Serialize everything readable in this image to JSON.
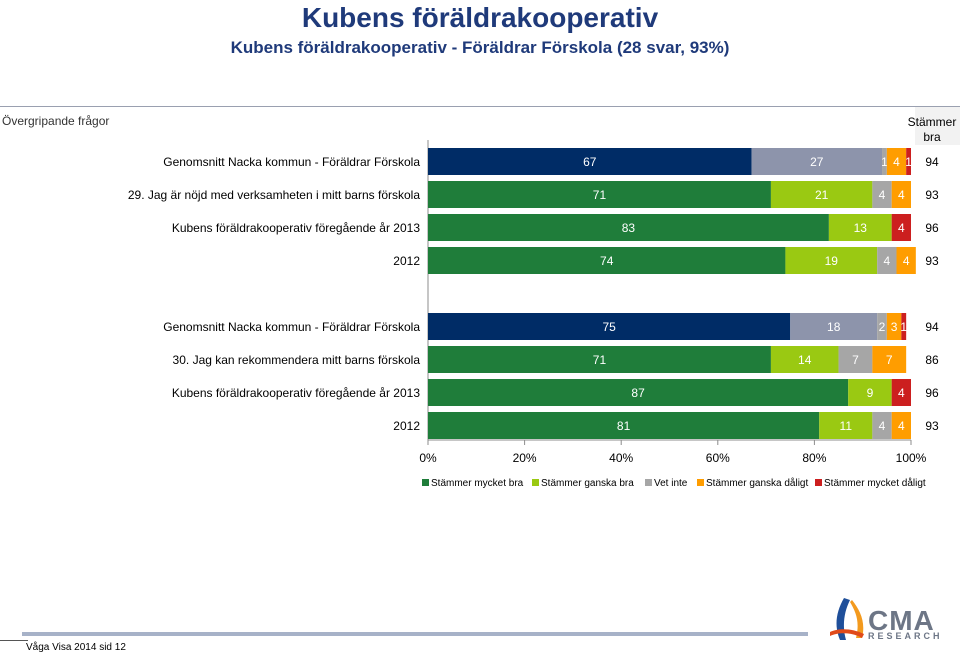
{
  "header": {
    "title": "Kubens föräldrakooperativ",
    "subtitle": "Kubens föräldrakooperativ - Föräldrar Förskola (28 svar, 93%)",
    "section": "Övergripande frågor",
    "right_column_line1": "Stämmer",
    "right_column_line2": "bra"
  },
  "footer": {
    "page_label": "Våga Visa 2014 sid 12",
    "logo_main": "CMA",
    "logo_sub": "RESEARCH"
  },
  "colors": {
    "navy": "#002c66",
    "gray_blue": "#8d94ab",
    "dark_green": "#1f7d3a",
    "light_green": "#9ac912",
    "gray": "#a6a6a6",
    "orange": "#ff9d00",
    "red": "#cc1f1f"
  },
  "chart_data": {
    "type": "bar",
    "orientation": "horizontal-stacked-100",
    "xlim": [
      0,
      100
    ],
    "xticks": [
      "0%",
      "20%",
      "40%",
      "60%",
      "80%",
      "100%"
    ],
    "legend_position": "bottom",
    "legend": [
      "Stämmer mycket bra",
      "Stämmer ganska bra",
      "Vet inte",
      "Stämmer ganska dåligt",
      "Stämmer mycket dåligt"
    ],
    "groups": [
      {
        "rows": [
          {
            "label": "Genomsnitt Nacka kommun - Föräldrar Förskola",
            "values": [
              67,
              27,
              1,
              4,
              1
            ],
            "total": "94",
            "palette": "nacka"
          },
          {
            "label": "29. Jag är nöjd med verksamheten i mitt barns förskola",
            "values": [
              71,
              21,
              4,
              4,
              0
            ],
            "total": "93",
            "palette": "main"
          },
          {
            "label": "Kubens föräldrakooperativ föregående år 2013",
            "values": [
              83,
              13,
              0,
              4
            ],
            "total": "96",
            "palette": "main4"
          },
          {
            "label": "2012",
            "values": [
              74,
              19,
              4,
              4,
              0
            ],
            "total": "93",
            "palette": "main"
          }
        ]
      },
      {
        "rows": [
          {
            "label": "Genomsnitt Nacka kommun - Föräldrar Förskola",
            "values": [
              75,
              18,
              2,
              3,
              1
            ],
            "total": "94",
            "palette": "nacka"
          },
          {
            "label": "30. Jag kan rekommendera mitt barns förskola",
            "values": [
              71,
              14,
              7,
              7,
              0
            ],
            "total": "86",
            "palette": "main"
          },
          {
            "label": "Kubens föräldrakooperativ föregående år 2013",
            "values": [
              87,
              9,
              0,
              4
            ],
            "total": "96",
            "palette": "main4"
          },
          {
            "label": "2012",
            "values": [
              81,
              11,
              4,
              4,
              0
            ],
            "total": "93",
            "palette": "main"
          }
        ]
      }
    ]
  }
}
